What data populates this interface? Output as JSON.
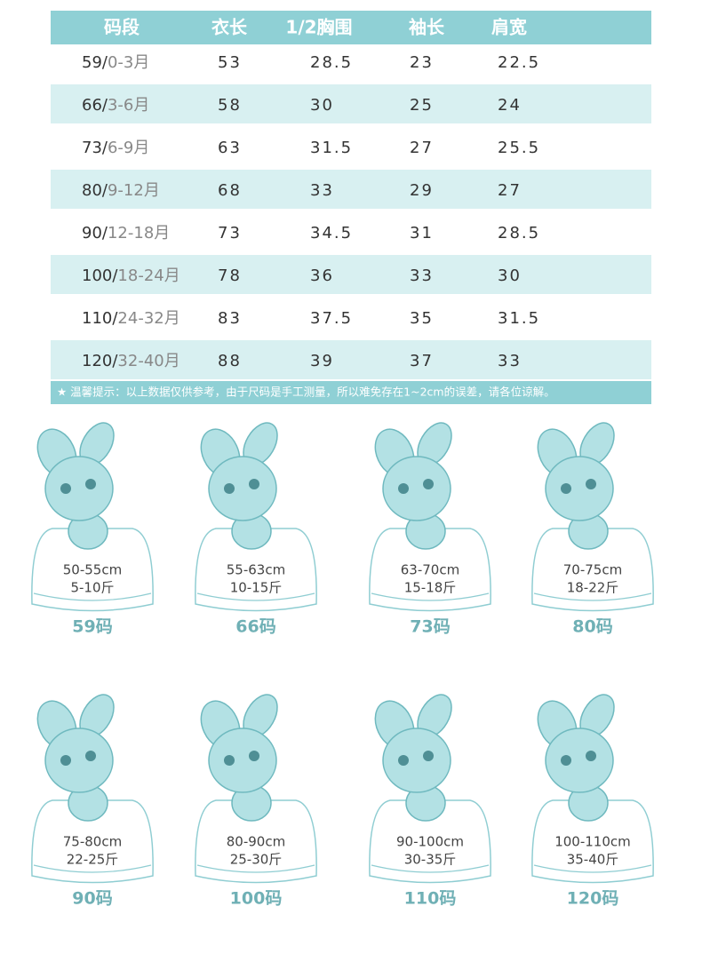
{
  "table": {
    "header": [
      "码段",
      "衣长",
      "1/2胸围",
      "袖长",
      "肩宽"
    ],
    "rows": [
      [
        "59/",
        "0-3月",
        53,
        28.5,
        23,
        22.5
      ],
      [
        "66/",
        "3-6月",
        58,
        30,
        25,
        24
      ],
      [
        "73/",
        "6-9月",
        63,
        31.5,
        27,
        25.5
      ],
      [
        "80/",
        "9-12月",
        68,
        33,
        29,
        27
      ],
      [
        "90/",
        "12-18月",
        73,
        34.5,
        31,
        28.5
      ],
      [
        "100/",
        "18-24月",
        78,
        36,
        33,
        30
      ],
      [
        "110/",
        "24-32月",
        83,
        37.5,
        35,
        31.5
      ],
      [
        "120/",
        "32-40月",
        88,
        39,
        37,
        33
      ]
    ],
    "note": "★ 温馨提示：以上数据仅供参考，由于尺码是手工测量，所以难免存在1~2cm的误差，请各位谅解。"
  },
  "cards": [
    {
      "height": "50-55cm",
      "weight": "5-10斤",
      "size": "59码"
    },
    {
      "height": "55-63cm",
      "weight": "10-15斤",
      "size": "66码"
    },
    {
      "height": "63-70cm",
      "weight": "15-18斤",
      "size": "73码"
    },
    {
      "height": "70-75cm",
      "weight": "18-22斤",
      "size": "80码"
    },
    {
      "height": "75-80cm",
      "weight": "22-25斤",
      "size": "90码"
    },
    {
      "height": "80-90cm",
      "weight": "25-30斤",
      "size": "100码"
    },
    {
      "height": "90-100cm",
      "weight": "30-35斤",
      "size": "110码"
    },
    {
      "height": "100-110cm",
      "weight": "35-40斤",
      "size": "120码"
    }
  ]
}
